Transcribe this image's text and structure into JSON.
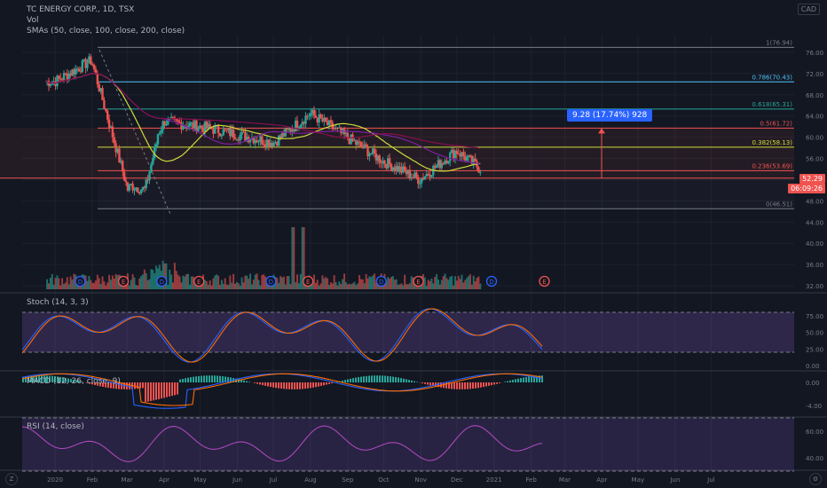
{
  "header": {
    "title": "TC ENERGY CORP., 1D, TSX",
    "volume_label": "Vol",
    "smas_label": "SMAs (50, close, 100, close, 200, close)",
    "currency": "CAD"
  },
  "price_axis": [
    "76.00",
    "72.00",
    "68.00",
    "64.00",
    "60.00",
    "56.00",
    "52.00",
    "48.00",
    "44.00",
    "40.00",
    "36.00",
    "32.00"
  ],
  "fib_levels": [
    {
      "label": "1(76.94)",
      "value": 76.94,
      "color": "#787b86"
    },
    {
      "label": "0.786(70.43)",
      "value": 70.43,
      "color": "#4fc3f7"
    },
    {
      "label": "0.618(65.31)",
      "value": 65.31,
      "color": "#26a69a"
    },
    {
      "label": "0.5(61.72)",
      "value": 61.72,
      "color": "#ef5350"
    },
    {
      "label": "0.382(58.13)",
      "value": 58.13,
      "color": "#cddc39"
    },
    {
      "label": "0.236(53.69)",
      "value": 53.69,
      "color": "#ef5350"
    },
    {
      "label": "0(46.51)",
      "value": 46.51,
      "color": "#787b86"
    }
  ],
  "measure_label": "9.28 (17.74%) 928",
  "last_price": "52.29",
  "countdown": "06:09:26",
  "events": [
    {
      "date": "2020-01-22",
      "type": "D"
    },
    {
      "date": "2020-02-27",
      "type": "E"
    },
    {
      "date": "2020-03-30",
      "type": "D"
    },
    {
      "date": "2020-04-30",
      "type": "E"
    },
    {
      "date": "2020-06-29",
      "type": "D"
    },
    {
      "date": "2020-07-30",
      "type": "E"
    },
    {
      "date": "2020-09-29",
      "type": "D"
    },
    {
      "date": "2020-10-30",
      "type": "E"
    },
    {
      "date": "2020-12-30",
      "type": "D"
    },
    {
      "date": "2021-02-12",
      "type": "E"
    }
  ],
  "stoch": {
    "label": "Stoch (14, 3, 3)",
    "axis": [
      "75.00",
      "50.00",
      "25.00",
      "0.00"
    ]
  },
  "macd": {
    "label": "MACD (12, 26, close, 9)",
    "axis": [
      "0.00",
      "-4.00"
    ]
  },
  "rsi": {
    "label": "RSI (14, close)",
    "axis": [
      "60.00",
      "40.00"
    ]
  },
  "time_axis": [
    "2020",
    "Feb",
    "Mar",
    "Apr",
    "May",
    "Jun",
    "Jul",
    "Aug",
    "Sep",
    "Oct",
    "Nov",
    "Dec",
    "2021",
    "Feb",
    "Mar",
    "Apr",
    "May",
    "Jun",
    "Jul"
  ],
  "footer": {
    "z_label": "Z"
  },
  "chart_data": {
    "type": "line",
    "title": "TC ENERGY CORP., 1D, TSX",
    "x": [
      "2020-01",
      "2020-02",
      "2020-03",
      "2020-04",
      "2020-05",
      "2020-06",
      "2020-07",
      "2020-08",
      "2020-09",
      "2020-10",
      "2020-11",
      "2020-12",
      "2021-01"
    ],
    "series": [
      {
        "name": "close",
        "values": [
          70.5,
          74.5,
          50.0,
          63.0,
          62.0,
          60.5,
          59.0,
          64.5,
          60.0,
          55.5,
          52.0,
          57.5,
          52.3
        ]
      }
    ],
    "ylim": [
      30.0,
      80.0
    ],
    "annotations": [
      "9.28 (17.74%) 928"
    ]
  }
}
